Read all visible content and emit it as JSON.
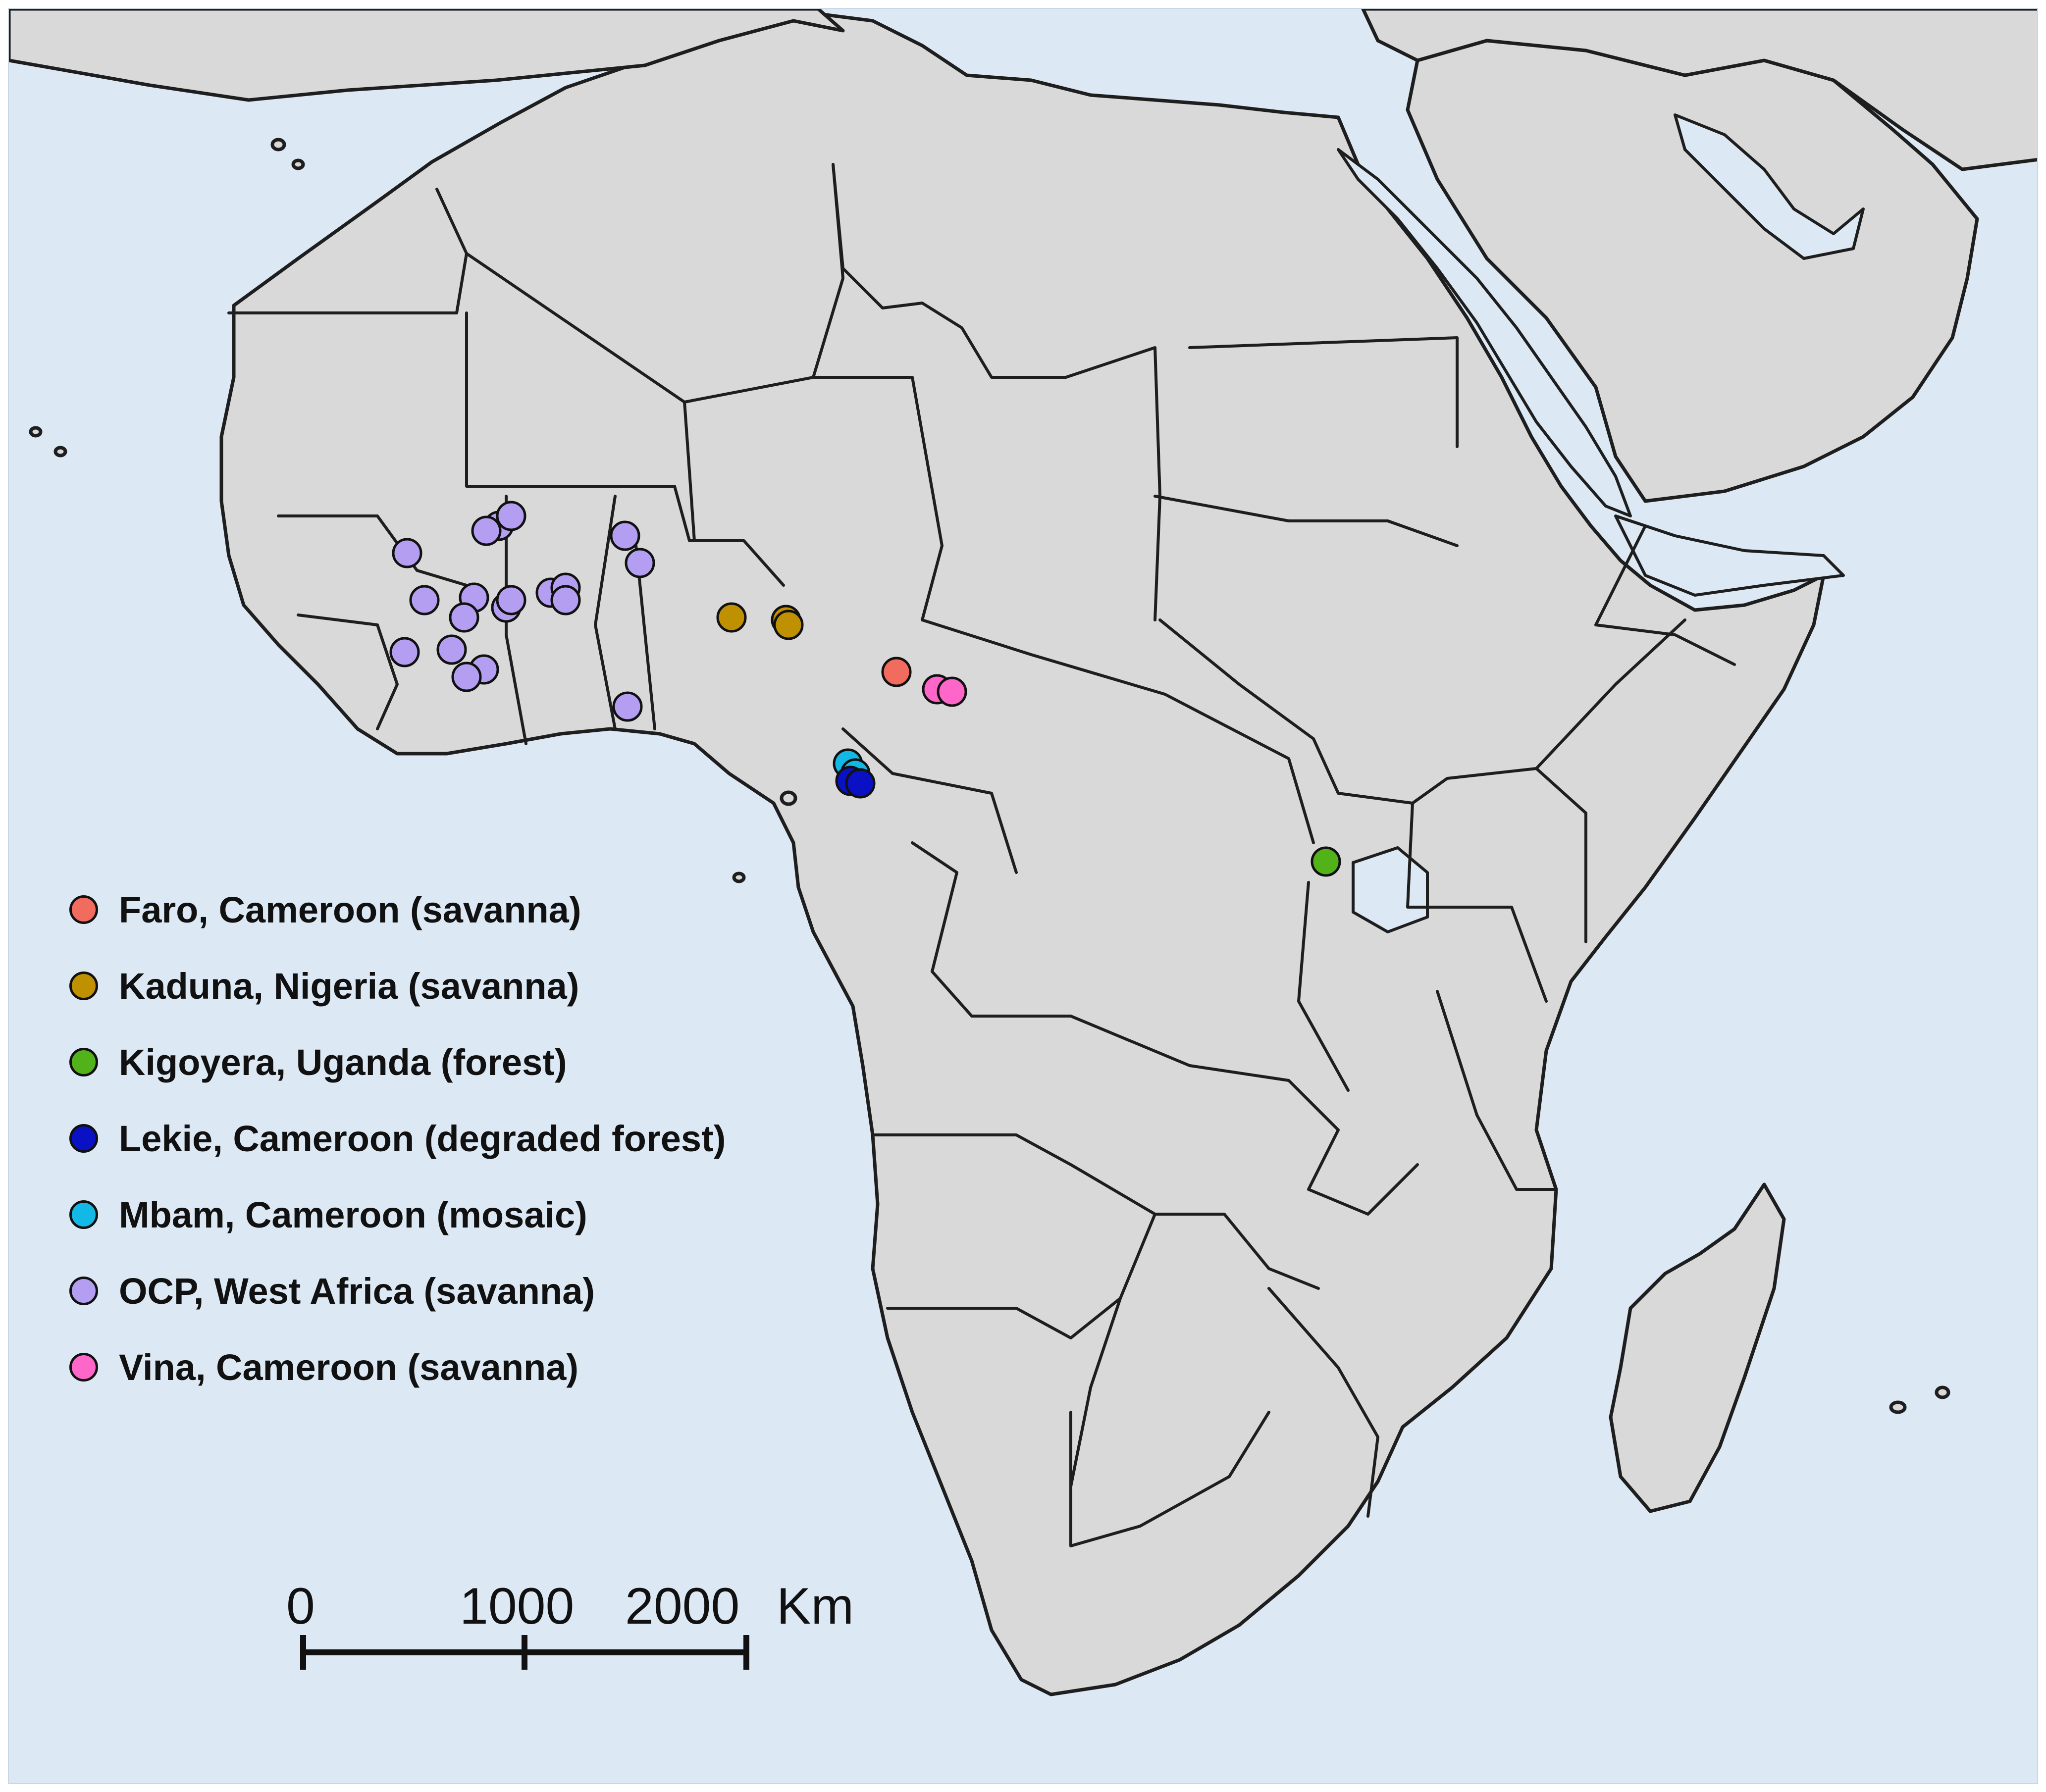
{
  "colors": {
    "sea": "#dce9f5",
    "land": "#d9d9d9",
    "border": "#1e1e1e"
  },
  "legend": [
    {
      "label": "Faro, Cameroon (savanna)",
      "color": "#f26b5f"
    },
    {
      "label": "Kaduna, Nigeria (savanna)",
      "color": "#bf9000"
    },
    {
      "label": "Kigoyera, Uganda (forest)",
      "color": "#52b219"
    },
    {
      "label": "Lekie, Cameroon (degraded forest)",
      "color": "#0a11c4"
    },
    {
      "label": "Mbam, Cameroon (mosaic)",
      "color": "#13b9e6"
    },
    {
      "label": "OCP, West Africa (savanna)",
      "color": "#b39ef2"
    },
    {
      "label": "Vina, Cameroon (savanna)",
      "color": "#ff66c9"
    }
  ],
  "scale_bar": {
    "tick_labels": [
      "0",
      "1000",
      "2000"
    ],
    "unit": "Km"
  }
}
